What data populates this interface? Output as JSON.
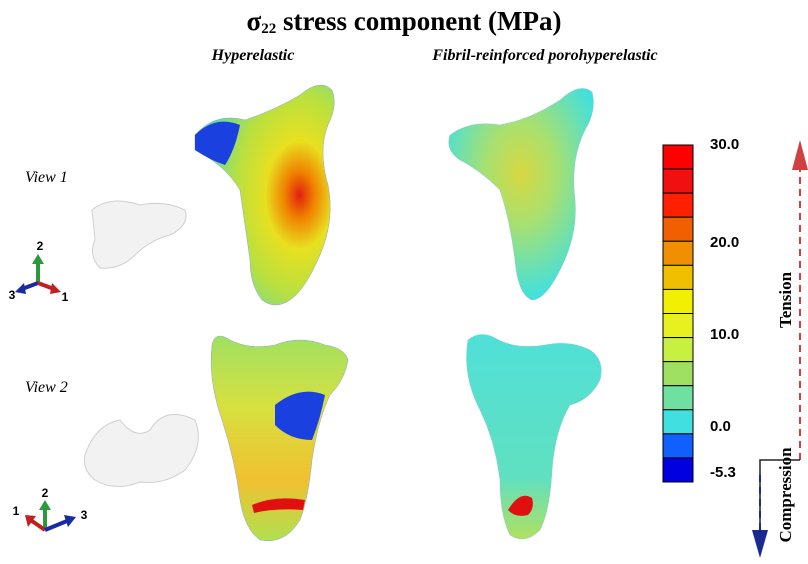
{
  "title": {
    "symbol": "σ",
    "subscript": "22",
    "text": " stress component (MPa)"
  },
  "columns": [
    "Hyperelastic",
    "Fibril-reinforced porohyperelastic"
  ],
  "rows": [
    {
      "label": "View 1",
      "triad": {
        "up": "2",
        "left": "3",
        "right": "1"
      }
    },
    {
      "label": "View 2",
      "triad": {
        "up": "2",
        "left": "1",
        "right": "3"
      }
    }
  ],
  "colorbar": {
    "labels": [
      "30.0",
      "20.0",
      "10.0",
      "0.0",
      "-5.3"
    ]
  },
  "arrows": {
    "up": "Tension",
    "down": "Compression"
  }
}
